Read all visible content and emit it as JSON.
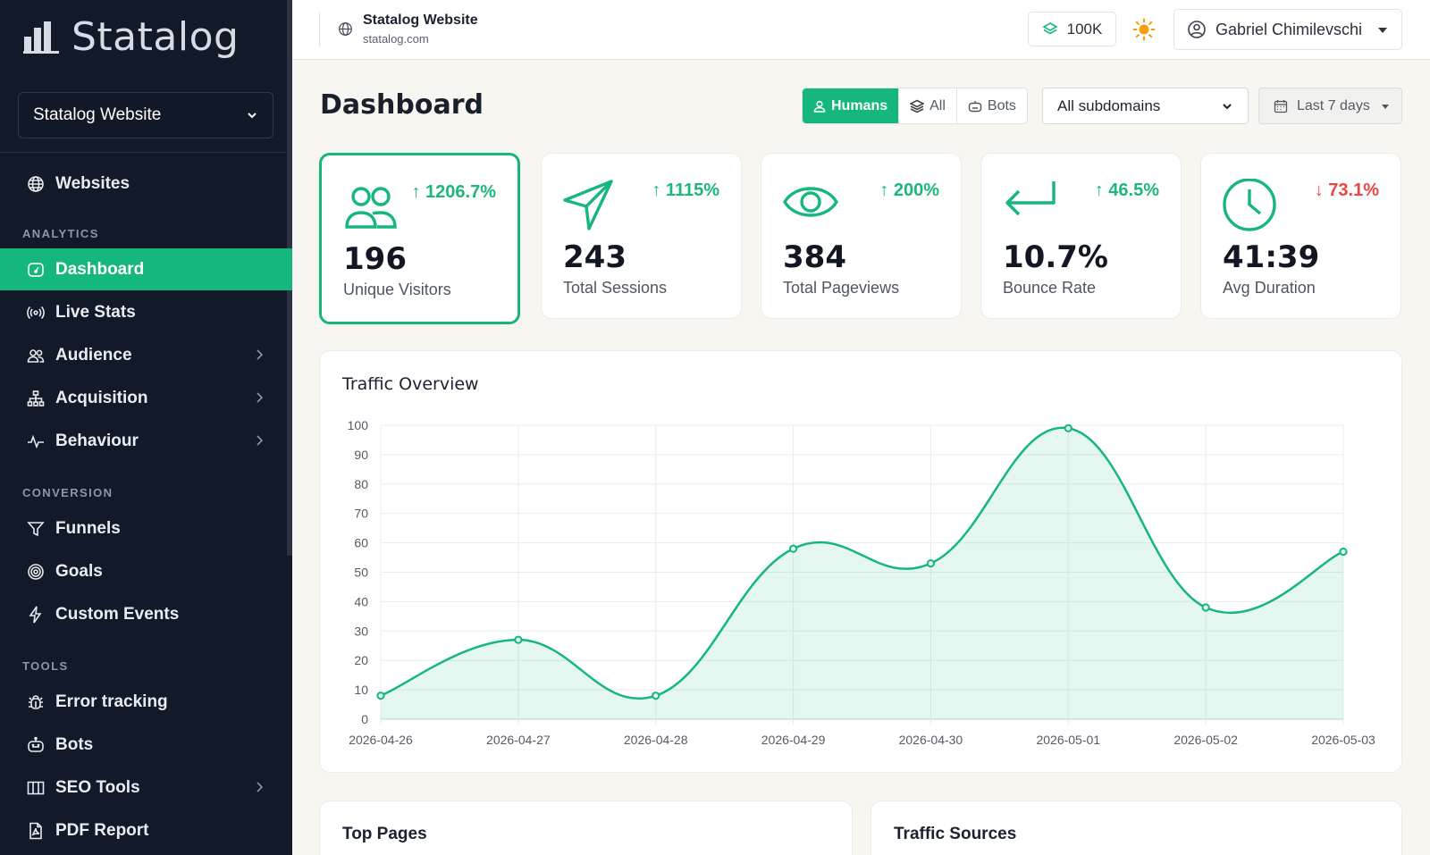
{
  "sidebar": {
    "brand": "Statalog",
    "site_selector": "Statalog Website",
    "items": [
      {
        "label": "Websites"
      },
      {
        "label": "Dashboard"
      },
      {
        "label": "Live Stats"
      },
      {
        "label": "Audience"
      },
      {
        "label": "Acquisition"
      },
      {
        "label": "Behaviour"
      },
      {
        "label": "Funnels"
      },
      {
        "label": "Goals"
      },
      {
        "label": "Custom Events"
      },
      {
        "label": "Error tracking"
      },
      {
        "label": "Bots"
      },
      {
        "label": "SEO Tools"
      },
      {
        "label": "PDF Report"
      }
    ],
    "sections": [
      "ANALYTICS",
      "CONVERSION",
      "TOOLS"
    ]
  },
  "topbar": {
    "site_name": "Statalog Website",
    "site_url": "statalog.com",
    "credits": "100K",
    "user": "Gabriel Chimilevschi"
  },
  "header": {
    "title": "Dashboard",
    "filters": [
      "Humans",
      "All",
      "Bots"
    ],
    "subdomain": "All subdomains",
    "date_range": "Last 7 days"
  },
  "kpis": [
    {
      "value": "196",
      "label": "Unique Visitors",
      "delta": "1206.7%",
      "direction": "up"
    },
    {
      "value": "243",
      "label": "Total Sessions",
      "delta": "1115%",
      "direction": "up"
    },
    {
      "value": "384",
      "label": "Total Pageviews",
      "delta": "200%",
      "direction": "up"
    },
    {
      "value": "10.7%",
      "label": "Bounce Rate",
      "delta": "46.5%",
      "direction": "up"
    },
    {
      "value": "41:39",
      "label": "Avg Duration",
      "delta": "73.1%",
      "direction": "down"
    }
  ],
  "colors": {
    "accent": "#16b77c",
    "down": "#ef4444",
    "sidebar": "#121a2a"
  },
  "chart_data": {
    "type": "area",
    "title": "Traffic Overview",
    "x": [
      "2026-04-26",
      "2026-04-27",
      "2026-04-28",
      "2026-04-29",
      "2026-04-30",
      "2026-05-01",
      "2026-05-02",
      "2026-05-03"
    ],
    "values": [
      8,
      27,
      8,
      58,
      53,
      99,
      38,
      57
    ],
    "yticks": [
      0,
      10,
      20,
      30,
      40,
      50,
      60,
      70,
      80,
      90,
      100
    ],
    "ylim": [
      0,
      100
    ],
    "grid": true
  },
  "bottom_panels": {
    "left": "Top Pages",
    "right": "Traffic Sources"
  }
}
